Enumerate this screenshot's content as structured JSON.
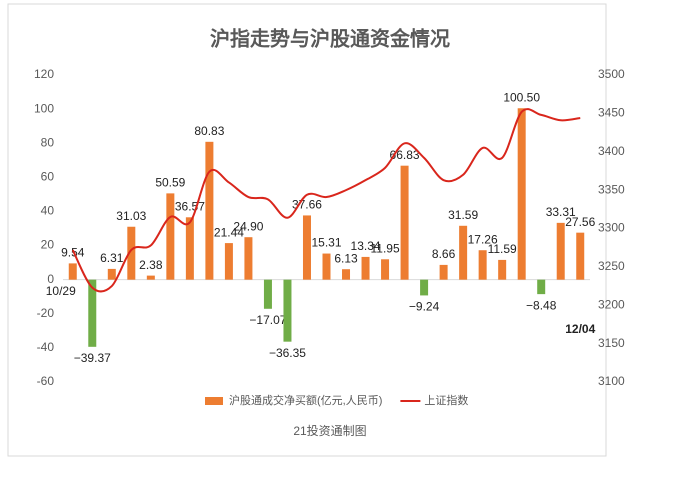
{
  "chart_data": {
    "type": "bar_line",
    "title": "沪指走势与沪股通资金情况",
    "footer": "21投资通制图",
    "categories": [
      "10/29",
      null,
      null,
      null,
      null,
      null,
      null,
      null,
      null,
      null,
      null,
      null,
      null,
      null,
      null,
      null,
      null,
      null,
      null,
      null,
      null,
      null,
      null,
      null,
      null,
      null,
      "12/04"
    ],
    "series": [
      {
        "name": "沪股通成交净买额(亿元,人民币)",
        "type": "bar",
        "color": "#ed7d31",
        "negative_color": "#70ad47",
        "values": [
          9.54,
          -39.37,
          6.31,
          31.03,
          2.38,
          50.59,
          36.57,
          80.83,
          21.44,
          24.9,
          -17.07,
          -36.35,
          37.66,
          15.31,
          6.13,
          13.34,
          11.95,
          66.83,
          -9.24,
          8.66,
          31.59,
          17.26,
          11.59,
          100.5,
          -8.48,
          33.31,
          27.56
        ],
        "value_labels": [
          "9.54",
          "−39.37",
          "6.31",
          "31.03",
          "2.38",
          "50.59",
          "36.57",
          "80.83",
          "21.44",
          "24.90",
          "−17.07",
          "−36.35",
          "37.66",
          "15.31",
          "6.13",
          "13.34",
          "11.95",
          "66.83",
          "−9.24",
          "8.66",
          "31.59",
          "17.26",
          "11.59",
          "100.50",
          "−8.48",
          "33.31",
          "27.56"
        ]
      },
      {
        "name": "上证指数",
        "type": "line",
        "axis": "y2",
        "color": "#d9261c",
        "values": [
          3272,
          3223,
          3225,
          3272,
          3278,
          3315,
          3308,
          3374,
          3360,
          3341,
          3338,
          3314,
          3344,
          3341,
          3350,
          3363,
          3379,
          3411,
          3392,
          3363,
          3370,
          3405,
          3392,
          3452,
          3448,
          3441,
          3444
        ]
      }
    ],
    "ylim": [
      -60,
      120
    ],
    "yticks": [
      -60,
      -40,
      -20,
      0,
      20,
      40,
      60,
      80,
      100,
      120
    ],
    "y2lim": [
      3100,
      3500
    ],
    "y2ticks": [
      3100,
      3150,
      3200,
      3250,
      3300,
      3350,
      3400,
      3450,
      3500
    ],
    "grid": false,
    "legend": "bottom"
  }
}
